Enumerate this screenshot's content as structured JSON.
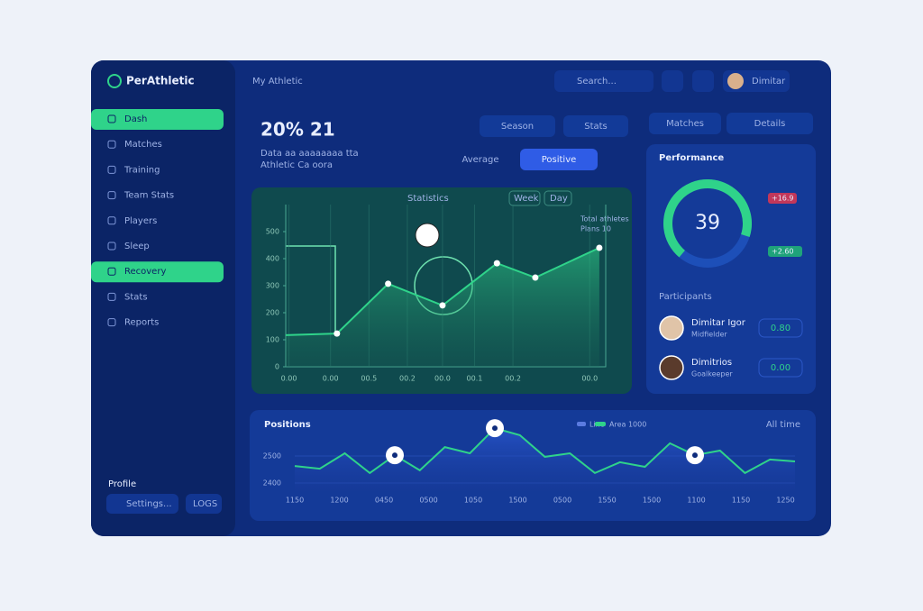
{
  "brand": "PerAthletic",
  "breadcrumb": "My Athletic",
  "search": "Search...",
  "user": "Dimitar",
  "sidebar": {
    "items": [
      "Dash",
      "Matches",
      "Training",
      "Team Stats",
      "Players",
      "Sleep",
      "Recovery",
      "Stats",
      "Reports"
    ],
    "active": [
      0,
      6
    ],
    "profile": "Profile",
    "settings": "Settings...",
    "logs": "LOGS"
  },
  "header": {
    "title": "20% 21",
    "line1": "Data aa aaaaaaaa tta",
    "line2": "Athletic Ca oora",
    "buttons": [
      "Season",
      "Stats",
      "Matches",
      "Details",
      "Average",
      "Positive"
    ]
  },
  "area_chart": {
    "type": "area",
    "title": "Statistics",
    "tabs": [
      "Week",
      "Day"
    ],
    "legend": [
      "Total athletes",
      "Plans 10"
    ],
    "color": "#2fd38a",
    "x": [
      0,
      1.6,
      3.2,
      4.9,
      6.6,
      7.8,
      9.8
    ],
    "values": [
      117,
      123,
      307,
      227,
      383,
      330,
      440
    ],
    "xlim": [
      0,
      10
    ],
    "ylim": [
      0,
      600
    ],
    "yticks": [
      0,
      100,
      200,
      300,
      400,
      500
    ],
    "xticks": [
      {
        "value": 0.1,
        "label": "0.00"
      },
      {
        "value": 1.4,
        "label": "0.00"
      },
      {
        "value": 2.6,
        "label": "00.5"
      },
      {
        "value": 3.8,
        "label": "00.2"
      },
      {
        "value": 4.9,
        "label": "00.0"
      },
      {
        "value": 5.9,
        "label": "00.1"
      },
      {
        "value": 7.1,
        "label": "00.2"
      },
      {
        "value": 9.5,
        "label": "00.0"
      }
    ]
  },
  "performance": {
    "title": "Performance",
    "value": "39",
    "stat1": "+16.9",
    "stat2": "+2.60",
    "participants": "Participants",
    "players": [
      {
        "name": "Dimitar Igor",
        "role": "Midfielder",
        "badge": "0.80"
      },
      {
        "name": "Dimitrios",
        "role": "Goalkeeper",
        "badge": "0.00"
      }
    ]
  },
  "line_chart": {
    "type": "line",
    "title": "Positions",
    "legend": [
      "Line",
      "Area 1000"
    ],
    "range": "All time",
    "color": "#2fd38a",
    "values": [
      2463,
      2453,
      2510,
      2437,
      2503,
      2447,
      2533,
      2510,
      2603,
      2577,
      2497,
      2510,
      2437,
      2477,
      2460,
      2547,
      2503,
      2520,
      2437,
      2487,
      2480
    ],
    "highlights": [
      4,
      8,
      16
    ],
    "ylim": [
      2370,
      2620
    ],
    "yticks": [
      2400,
      2500
    ],
    "xtick_labels": [
      "1150",
      "1200",
      "0450",
      "0500",
      "1050",
      "1500",
      "0500",
      "1550",
      "1500",
      "1100",
      "1150",
      "1250"
    ]
  }
}
